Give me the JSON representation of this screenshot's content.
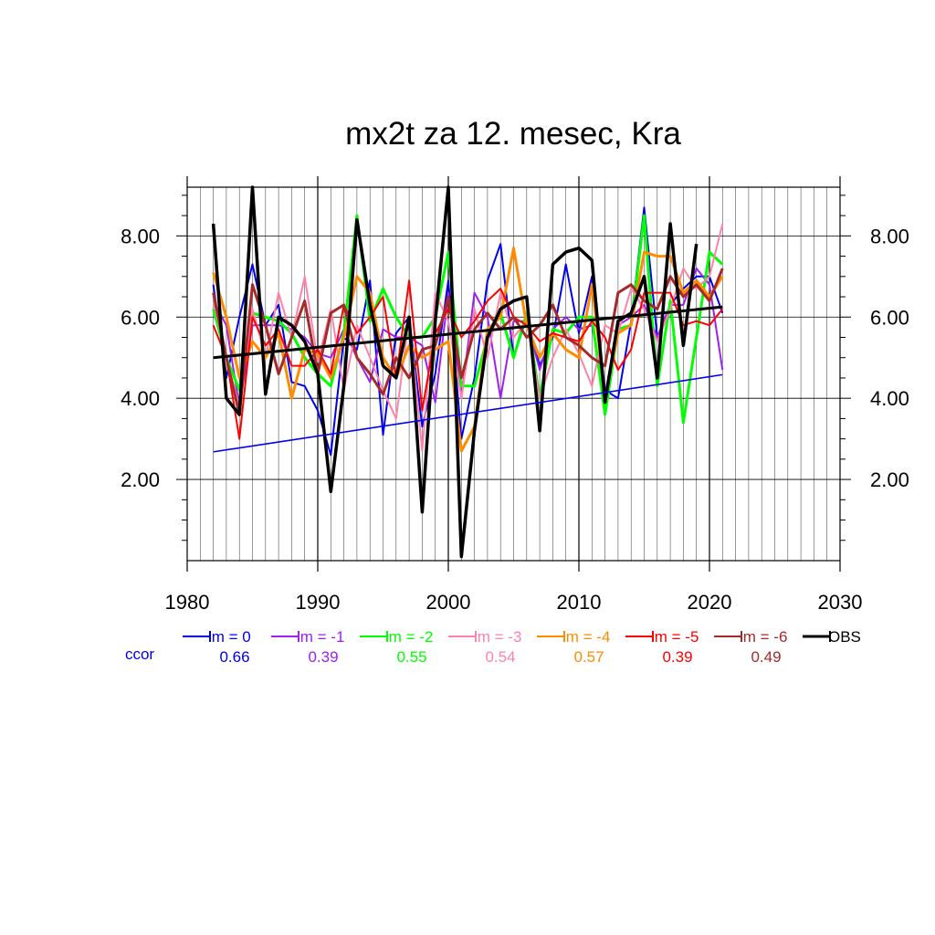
{
  "chart_data": {
    "type": "line",
    "title": "mx2t za 12. mesec, Kra",
    "xlabel": "",
    "ylabel": "",
    "xlim": [
      1980,
      2030
    ],
    "ylim": [
      0,
      9.2
    ],
    "x_ticks": [
      {
        "value": 1980,
        "label": "1980"
      },
      {
        "value": 1990,
        "label": "1990"
      },
      {
        "value": 2000,
        "label": "2000"
      },
      {
        "value": 2010,
        "label": "2010"
      },
      {
        "value": 2020,
        "label": "2020"
      },
      {
        "value": 2030,
        "label": "2030"
      }
    ],
    "y_ticks": [
      {
        "value": 2,
        "label": "2.00"
      },
      {
        "value": 4,
        "label": "4.00"
      },
      {
        "value": 6,
        "label": "6.00"
      },
      {
        "value": 8,
        "label": "8.00"
      }
    ],
    "grid": true,
    "legend_position": "bottom",
    "x": [
      1982,
      1983,
      1984,
      1985,
      1986,
      1987,
      1988,
      1989,
      1990,
      1991,
      1992,
      1993,
      1994,
      1995,
      1996,
      1997,
      1998,
      1999,
      2000,
      2001,
      2002,
      2003,
      2004,
      2005,
      2006,
      2007,
      2008,
      2009,
      2010,
      2011,
      2012,
      2013,
      2014,
      2015,
      2016,
      2017,
      2018,
      2019,
      2020,
      2021
    ],
    "series": [
      {
        "name": "lm = 0",
        "color": "#0000ee",
        "width": 2,
        "values": [
          6.8,
          4.5,
          6.0,
          7.3,
          5.8,
          6.3,
          4.4,
          4.3,
          3.7,
          2.6,
          5.5,
          5.2,
          6.9,
          3.1,
          5.6,
          6.0,
          3.3,
          4.6,
          6.9,
          3.0,
          4.5,
          6.9,
          7.8,
          5.0,
          6.0,
          4.8,
          5.5,
          7.3,
          5.6,
          7.0,
          4.2,
          4.0,
          5.9,
          8.7,
          5.5,
          6.3,
          6.7,
          7.0,
          7.0,
          6.1
        ]
      },
      {
        "name": "lm = -1",
        "color": "#a020f0",
        "width": 2,
        "values": [
          6.4,
          5.8,
          3.8,
          5.8,
          5.8,
          5.8,
          5.7,
          5.5,
          5.1,
          5.0,
          5.7,
          5.0,
          4.4,
          5.7,
          5.5,
          5.5,
          5.3,
          3.9,
          6.6,
          4.0,
          6.6,
          6.0,
          4.0,
          5.9,
          5.9,
          4.7,
          5.7,
          6.0,
          5.7,
          5.8,
          4.1,
          5.8,
          6.0,
          6.3,
          5.5,
          6.3,
          6.3,
          7.2,
          6.8,
          4.7
        ]
      },
      {
        "name": "lm = -2",
        "color": "#00ff00",
        "width": 3,
        "values": [
          6.2,
          5.0,
          4.2,
          6.1,
          6.0,
          5.9,
          5.6,
          5.0,
          4.6,
          4.3,
          5.6,
          8.5,
          5.9,
          6.7,
          6.0,
          5.5,
          5.5,
          6.0,
          7.6,
          4.3,
          4.3,
          5.5,
          6.1,
          5.0,
          6.1,
          4.0,
          5.7,
          5.6,
          6.0,
          6.0,
          3.6,
          5.7,
          5.8,
          8.5,
          4.3,
          6.4,
          3.4,
          5.5,
          7.6,
          7.3
        ]
      },
      {
        "name": "lm = -3",
        "color": "#ff82ab",
        "width": 2,
        "values": [
          6.4,
          5.0,
          3.8,
          6.2,
          5.0,
          6.6,
          5.5,
          7.0,
          4.9,
          6.2,
          4.2,
          5.8,
          5.0,
          4.2,
          3.5,
          6.0,
          2.7,
          6.6,
          5.9,
          4.0,
          6.2,
          5.0,
          6.6,
          5.5,
          5.9,
          4.0,
          5.0,
          5.7,
          5.1,
          4.3,
          5.8,
          5.6,
          6.7,
          6.2,
          5.4,
          6.2,
          7.2,
          6.7,
          7.0,
          8.3
        ]
      },
      {
        "name": "lm = -4",
        "color": "#ff8c00",
        "width": 3,
        "values": [
          7.1,
          6.0,
          4.5,
          5.4,
          5.0,
          5.6,
          4.0,
          5.2,
          5.1,
          4.5,
          5.5,
          7.0,
          6.6,
          5.0,
          4.5,
          5.3,
          5.0,
          5.2,
          5.4,
          2.7,
          3.3,
          5.7,
          6.0,
          7.7,
          5.8,
          5.0,
          5.6,
          5.2,
          5.0,
          6.8,
          4.0,
          5.6,
          5.8,
          7.6,
          7.5,
          7.5,
          6.6,
          6.9,
          6.5,
          7.0
        ]
      },
      {
        "name": "lm = -5",
        "color": "#ff0000",
        "width": 2,
        "values": [
          5.8,
          5.0,
          3.0,
          6.0,
          5.3,
          5.7,
          4.8,
          4.8,
          5.2,
          4.6,
          6.3,
          5.6,
          6.0,
          6.5,
          4.5,
          6.9,
          3.7,
          5.6,
          6.2,
          5.5,
          5.9,
          6.4,
          6.7,
          6.0,
          5.8,
          5.4,
          5.6,
          5.5,
          5.4,
          5.9,
          5.5,
          4.7,
          5.2,
          6.6,
          6.6,
          6.6,
          5.8,
          5.9,
          5.8,
          6.2
        ]
      },
      {
        "name": "lm = -6",
        "color": "#a52a2a",
        "width": 3,
        "values": [
          6.6,
          5.0,
          3.6,
          6.8,
          5.8,
          4.6,
          5.5,
          6.4,
          4.6,
          6.1,
          6.3,
          5.0,
          4.6,
          4.1,
          5.0,
          4.5,
          5.2,
          5.3,
          6.5,
          4.5,
          5.7,
          6.1,
          5.7,
          6.0,
          5.5,
          5.8,
          6.3,
          5.5,
          5.3,
          5.0,
          4.8,
          6.6,
          6.8,
          6.4,
          6.2,
          7.0,
          6.5,
          6.8,
          6.4,
          7.2
        ]
      },
      {
        "name": "OBS",
        "color": "#000000",
        "width": 3.5,
        "values": [
          8.3,
          4.0,
          3.6,
          9.2,
          4.1,
          6.0,
          5.8,
          5.4,
          4.6,
          1.7,
          4.3,
          8.4,
          6.3,
          4.8,
          4.5,
          6.0,
          1.2,
          5.9,
          9.2,
          0.1,
          3.2,
          5.5,
          6.2,
          6.4,
          6.5,
          3.2,
          7.3,
          7.6,
          7.7,
          7.4,
          3.9,
          5.9,
          6.1,
          7.0,
          4.5,
          8.3,
          5.3,
          7.8,
          null,
          null
        ]
      }
    ],
    "trend_lines": [
      {
        "color": "#0000ee",
        "width": 1.6,
        "x": [
          1982,
          2021
        ],
        "y": [
          2.68,
          4.58
        ]
      },
      {
        "color": "#000000",
        "width": 3,
        "x": [
          1982,
          2021
        ],
        "y": [
          5.0,
          6.25
        ]
      }
    ],
    "legend": [
      {
        "label": "lm = 0",
        "color": "#0000ee",
        "ccor": "0.66"
      },
      {
        "label": "lm = -1",
        "color": "#a020f0",
        "ccor": "0.39"
      },
      {
        "label": "lm = -2",
        "color": "#00ff00",
        "ccor": "0.55"
      },
      {
        "label": "lm = -3",
        "color": "#ff82ab",
        "ccor": "0.54"
      },
      {
        "label": "lm = -4",
        "color": "#ff8c00",
        "ccor": "0.57"
      },
      {
        "label": "lm = -5",
        "color": "#ff0000",
        "ccor": "0.39"
      },
      {
        "label": "lm = -6",
        "color": "#a52a2a",
        "ccor": "0.49"
      },
      {
        "label": "OBS",
        "color": "#000000",
        "ccor": ""
      }
    ],
    "ccor_label": "ccor",
    "ccor_label_color": "#0000ee"
  }
}
